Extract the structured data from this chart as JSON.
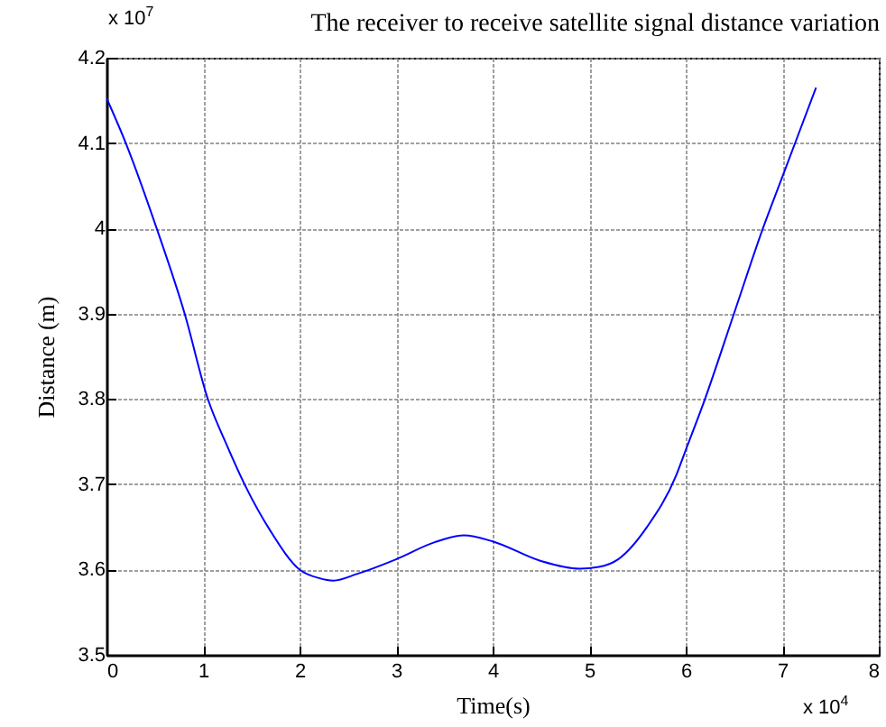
{
  "chart_data": {
    "type": "line",
    "title": "The receiver to receive satellite signal distance variation",
    "xlabel": "Time(s)",
    "ylabel": "Distance (m)",
    "annotations": [
      "x 10$^{7}$",
      "x 10$^{4}$"
    ],
    "x": [
      0,
      0.2,
      0.52,
      0.81,
      1.05,
      1.25,
      1.43,
      1.7,
      2.0,
      2.2,
      2.35,
      2.6,
      3.0,
      3.4,
      3.7,
      4.0,
      4.5,
      4.9,
      5.1,
      5.3,
      5.6,
      5.9,
      6.0,
      6.2,
      6.5,
      6.8,
      7.0,
      7.35
    ],
    "series": [
      {
        "color": "#0000ff",
        "values": [
          4.153,
          4.1,
          4.0,
          3.9,
          3.8,
          3.745,
          3.7,
          3.645,
          3.6,
          3.59,
          3.587,
          3.595,
          3.612,
          3.632,
          3.64,
          3.633,
          3.61,
          3.601,
          3.603,
          3.612,
          3.65,
          3.71,
          3.74,
          3.8,
          3.9,
          4.0,
          4.06,
          4.165
        ]
      }
    ],
    "xlim": [
      0,
      8
    ],
    "ylim": [
      3.5,
      4.2
    ],
    "xticks": [
      0,
      1,
      2,
      3,
      4,
      5,
      6,
      7,
      8
    ],
    "yticks": [
      3.5,
      3.6,
      3.7,
      3.8,
      3.9,
      4,
      4.1,
      4.2
    ],
    "grid": true
  }
}
